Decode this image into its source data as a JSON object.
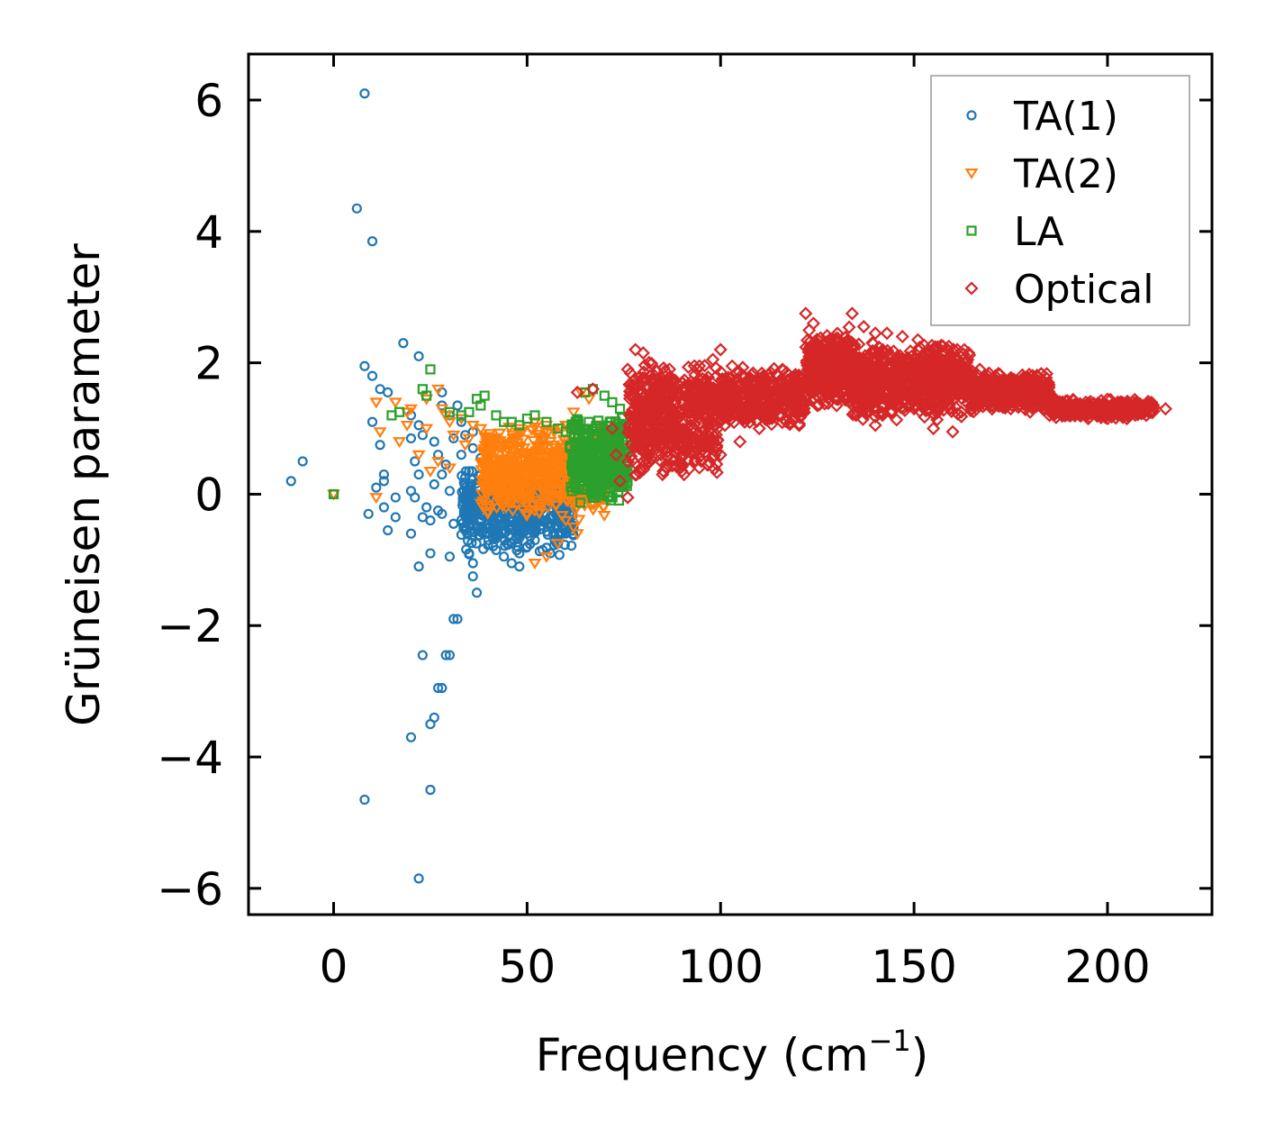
{
  "chart_data": {
    "type": "scatter",
    "title": "",
    "xlabel_main": "Frequency (cm",
    "xlabel_sup": "−1",
    "xlabel_close": ")",
    "ylabel": "Grüneisen parameter",
    "xlim": [
      -22,
      227
    ],
    "ylim": [
      -6.4,
      6.7
    ],
    "xticks": [
      0,
      50,
      100,
      150,
      200
    ],
    "xtick_labels": [
      "0",
      "50",
      "100",
      "150",
      "200"
    ],
    "yticks": [
      -6,
      -4,
      -2,
      0,
      2,
      4,
      6
    ],
    "ytick_labels": [
      "−6",
      "−4",
      "−2",
      "0",
      "2",
      "4",
      "6"
    ],
    "legend_position": "top-right",
    "series": [
      {
        "name": "TA(1)",
        "marker": "circle",
        "color": "#1f77b4",
        "points": [
          [
            -11,
            0.2
          ],
          [
            -8,
            0.5
          ],
          [
            0,
            0
          ],
          [
            8,
            6.1
          ],
          [
            6,
            4.35
          ],
          [
            10,
            3.85
          ],
          [
            8,
            1.95
          ],
          [
            10,
            1.8
          ],
          [
            12,
            1.6
          ],
          [
            14,
            1.55
          ],
          [
            10,
            1.1
          ],
          [
            12,
            0.75
          ],
          [
            13,
            0.3
          ],
          [
            13,
            0.2
          ],
          [
            11,
            0.1
          ],
          [
            13,
            -0.2
          ],
          [
            16,
            -0.05
          ],
          [
            16,
            -0.35
          ],
          [
            14,
            -0.55
          ],
          [
            20,
            -0.6
          ],
          [
            9,
            -0.3
          ],
          [
            18,
            2.3
          ],
          [
            22,
            2.1
          ],
          [
            20,
            1.2
          ],
          [
            22,
            1.05
          ],
          [
            20,
            0.85
          ],
          [
            21,
            0.5
          ],
          [
            22,
            0.3
          ],
          [
            20,
            0.05
          ],
          [
            23,
            -0.35
          ],
          [
            25,
            -0.4
          ],
          [
            21,
            -0.05
          ],
          [
            22,
            -1.1
          ],
          [
            25,
            -0.9
          ],
          [
            30,
            -0.95
          ],
          [
            24,
            -0.2
          ],
          [
            23,
            0.9
          ],
          [
            26,
            0.8
          ],
          [
            27,
            0.6
          ],
          [
            28,
            0.3
          ],
          [
            28,
            1.55
          ],
          [
            28,
            1.35
          ],
          [
            30,
            1.2
          ],
          [
            32,
            1.35
          ],
          [
            31,
            0.85
          ],
          [
            33,
            0.6
          ],
          [
            29,
            0.45
          ],
          [
            35,
            0.35
          ],
          [
            26,
            0.15
          ],
          [
            30,
            0.05
          ],
          [
            27,
            -0.25
          ],
          [
            28,
            -0.3
          ],
          [
            31,
            -0.45
          ],
          [
            34,
            -0.55
          ],
          [
            35,
            -0.9
          ],
          [
            36,
            -1.05
          ],
          [
            36,
            -1.25
          ],
          [
            37,
            -1.5
          ],
          [
            31,
            -1.9
          ],
          [
            32,
            -1.9
          ],
          [
            23,
            -2.45
          ],
          [
            30,
            -2.45
          ],
          [
            29,
            -2.45
          ],
          [
            27,
            -2.95
          ],
          [
            28,
            -2.95
          ],
          [
            26,
            -3.4
          ],
          [
            25,
            -3.5
          ],
          [
            20,
            -3.7
          ],
          [
            25,
            -4.5
          ],
          [
            8,
            -4.65
          ],
          [
            22,
            -5.85
          ],
          [
            33,
            1.1
          ],
          [
            34,
            0.9
          ],
          [
            36,
            0.7
          ],
          [
            38,
            0.55
          ],
          [
            36,
            0.95
          ],
          [
            40,
            0.8
          ],
          [
            42,
            0.4
          ],
          [
            44,
            0.2
          ],
          [
            46,
            0.05
          ],
          [
            38,
            -0.1
          ],
          [
            40,
            -0.3
          ],
          [
            42,
            -0.45
          ],
          [
            44,
            -0.6
          ],
          [
            46,
            -0.75
          ],
          [
            48,
            -0.9
          ],
          [
            50,
            -0.8
          ],
          [
            52,
            -0.7
          ],
          [
            54,
            -0.85
          ],
          [
            56,
            -0.9
          ],
          [
            58,
            -0.75
          ],
          [
            60,
            -0.6
          ],
          [
            40,
            -0.7
          ],
          [
            42,
            -0.85
          ],
          [
            44,
            -0.95
          ],
          [
            46,
            -1.05
          ],
          [
            48,
            -1.1
          ],
          [
            50,
            -0.6
          ],
          [
            52,
            -0.4
          ],
          [
            54,
            -0.2
          ],
          [
            56,
            0.05
          ],
          [
            58,
            0.25
          ],
          [
            60,
            0.45
          ],
          [
            62,
            0.65
          ],
          [
            38,
            0.3
          ],
          [
            40,
            0.1
          ],
          [
            46,
            -0.35
          ],
          [
            48,
            -0.55
          ],
          [
            50,
            -0.25
          ],
          [
            52,
            -0.05
          ],
          [
            54,
            0.15
          ],
          [
            56,
            -0.35
          ],
          [
            58,
            -0.5
          ],
          [
            60,
            -0.25
          ],
          [
            62,
            -0.1
          ],
          [
            45,
            0.5
          ],
          [
            47,
            0.3
          ],
          [
            49,
            0.1
          ]
        ],
        "scatter_clouds": [
          {
            "x_range": [
              33,
              62
            ],
            "y_range": [
              -0.95,
              0.45
            ],
            "count": 520,
            "seed": 11
          }
        ]
      },
      {
        "name": "TA(2)",
        "marker": "triangle-down",
        "color": "#ff7f0e",
        "points": [
          [
            0,
            0
          ],
          [
            11,
            1.4
          ],
          [
            12,
            0.95
          ],
          [
            11,
            -0.05
          ],
          [
            16,
            1.4
          ],
          [
            17,
            0.8
          ],
          [
            19,
            1.05
          ],
          [
            19,
            1.25
          ],
          [
            20,
            1.3
          ],
          [
            22,
            0.6
          ],
          [
            24,
            1.0
          ],
          [
            24,
            1.45
          ],
          [
            27,
            1.6
          ],
          [
            28,
            1.3
          ],
          [
            29,
            1.2
          ],
          [
            30,
            1.1
          ],
          [
            31,
            0.9
          ],
          [
            33,
            1.15
          ],
          [
            36,
            1.05
          ],
          [
            38,
            1.0
          ],
          [
            35,
            0.85
          ],
          [
            34,
            0.75
          ],
          [
            30,
            0.4
          ],
          [
            27,
            0.5
          ],
          [
            25,
            0.35
          ],
          [
            52,
            -1.05
          ],
          [
            55,
            -0.95
          ],
          [
            58,
            -0.75
          ],
          [
            62,
            -0.5
          ],
          [
            63,
            -0.6
          ],
          [
            60,
            -0.4
          ],
          [
            64,
            1.55
          ],
          [
            66,
            1.45
          ],
          [
            62,
            1.25
          ],
          [
            60,
            1.05
          ],
          [
            57,
            0.95
          ],
          [
            55,
            1.05
          ],
          [
            52,
            1.1
          ],
          [
            48,
            1.0
          ]
        ],
        "scatter_clouds": [
          {
            "x_range": [
              38,
              70
            ],
            "y_range": [
              -0.4,
              1.1
            ],
            "count": 650,
            "seed": 23
          }
        ]
      },
      {
        "name": "LA",
        "marker": "square",
        "color": "#2ca02c",
        "points": [
          [
            0,
            0
          ],
          [
            15,
            1.2
          ],
          [
            17,
            1.25
          ],
          [
            23,
            1.6
          ],
          [
            24,
            1.5
          ],
          [
            25,
            1.9
          ],
          [
            30,
            1.25
          ],
          [
            33,
            1.2
          ],
          [
            35,
            1.25
          ],
          [
            37,
            1.45
          ],
          [
            38,
            1.35
          ],
          [
            39,
            1.5
          ],
          [
            42,
            1.2
          ],
          [
            44,
            1.1
          ],
          [
            46,
            1.1
          ],
          [
            48,
            1.05
          ],
          [
            50,
            1.15
          ],
          [
            52,
            1.2
          ],
          [
            55,
            1.1
          ],
          [
            58,
            1.0
          ],
          [
            60,
            0.95
          ],
          [
            62,
            1.05
          ],
          [
            65,
            1.55
          ],
          [
            67,
            1.6
          ],
          [
            70,
            1.5
          ],
          [
            72,
            1.4
          ],
          [
            74,
            1.3
          ],
          [
            76,
            0.95
          ]
        ],
        "scatter_clouds": [
          {
            "x_range": [
              61,
              76
            ],
            "y_range": [
              -0.15,
              1.25
            ],
            "count": 360,
            "seed": 37
          }
        ]
      },
      {
        "name": "Optical",
        "marker": "diamond",
        "color": "#d62728",
        "points": [
          [
            63,
            1.55
          ],
          [
            67,
            1.6
          ],
          [
            72,
            1.0
          ],
          [
            73,
            0.6
          ],
          [
            74,
            0.2
          ],
          [
            76,
            -0.05
          ],
          [
            76,
            1.9
          ],
          [
            78,
            2.2
          ],
          [
            80,
            2.15
          ],
          [
            83,
            1.8
          ],
          [
            86,
            1.5
          ],
          [
            90,
            1.7
          ],
          [
            94,
            1.9
          ],
          [
            98,
            2.05
          ],
          [
            100,
            2.2
          ],
          [
            103,
            1.95
          ],
          [
            106,
            1.8
          ],
          [
            109,
            1.7
          ],
          [
            113,
            1.85
          ],
          [
            116,
            1.9
          ],
          [
            119,
            1.7
          ],
          [
            122,
            2.75
          ],
          [
            124,
            2.6
          ],
          [
            126,
            2.1
          ],
          [
            128,
            1.7
          ],
          [
            131,
            1.95
          ],
          [
            134,
            2.75
          ],
          [
            137,
            2.55
          ],
          [
            140,
            2.45
          ],
          [
            143,
            2.45
          ],
          [
            147,
            2.4
          ],
          [
            151,
            2.35
          ],
          [
            155,
            2.2
          ],
          [
            159,
            2.25
          ],
          [
            163,
            2.2
          ],
          [
            167,
            1.9
          ],
          [
            171,
            1.8
          ],
          [
            175,
            1.75
          ],
          [
            179,
            1.55
          ],
          [
            183,
            1.45
          ],
          [
            187,
            1.4
          ],
          [
            191,
            1.35
          ],
          [
            195,
            1.35
          ],
          [
            199,
            1.3
          ],
          [
            203,
            1.3
          ],
          [
            207,
            1.25
          ],
          [
            211,
            1.25
          ],
          [
            215,
            1.3
          ],
          [
            80,
            0.5
          ],
          [
            85,
            0.3
          ],
          [
            90,
            0.35
          ],
          [
            95,
            0.5
          ],
          [
            100,
            0.6
          ],
          [
            105,
            0.8
          ],
          [
            110,
            1.0
          ],
          [
            115,
            1.2
          ],
          [
            120,
            1.3
          ],
          [
            125,
            1.35
          ],
          [
            130,
            1.35
          ],
          [
            135,
            1.2
          ],
          [
            140,
            1.05
          ],
          [
            145,
            1.5
          ],
          [
            150,
            1.3
          ],
          [
            155,
            1.0
          ],
          [
            160,
            0.95
          ],
          [
            165,
            1.3
          ],
          [
            170,
            1.35
          ],
          [
            175,
            1.3
          ],
          [
            180,
            1.25
          ],
          [
            185,
            1.2
          ],
          [
            190,
            1.2
          ],
          [
            195,
            1.15
          ],
          [
            200,
            1.15
          ],
          [
            205,
            1.15
          ],
          [
            210,
            1.2
          ]
        ],
        "scatter_clouds": [
          {
            "x_range": [
              76,
              100
            ],
            "y_range": [
              0.2,
              2.05
            ],
            "count": 560,
            "seed": 51
          },
          {
            "x_range": [
              100,
              122
            ],
            "y_range": [
              1.0,
              1.95
            ],
            "count": 380,
            "seed": 63
          },
          {
            "x_range": [
              122,
              134
            ],
            "y_range": [
              1.3,
              2.55
            ],
            "count": 300,
            "seed": 71
          },
          {
            "x_range": [
              134,
              165
            ],
            "y_range": [
              1.1,
              2.35
            ],
            "count": 700,
            "seed": 83
          },
          {
            "x_range": [
              165,
              185
            ],
            "y_range": [
              1.25,
              1.85
            ],
            "count": 360,
            "seed": 97
          },
          {
            "x_range": [
              185,
              212
            ],
            "y_range": [
              1.15,
              1.45
            ],
            "count": 320,
            "seed": 109
          }
        ]
      }
    ]
  }
}
